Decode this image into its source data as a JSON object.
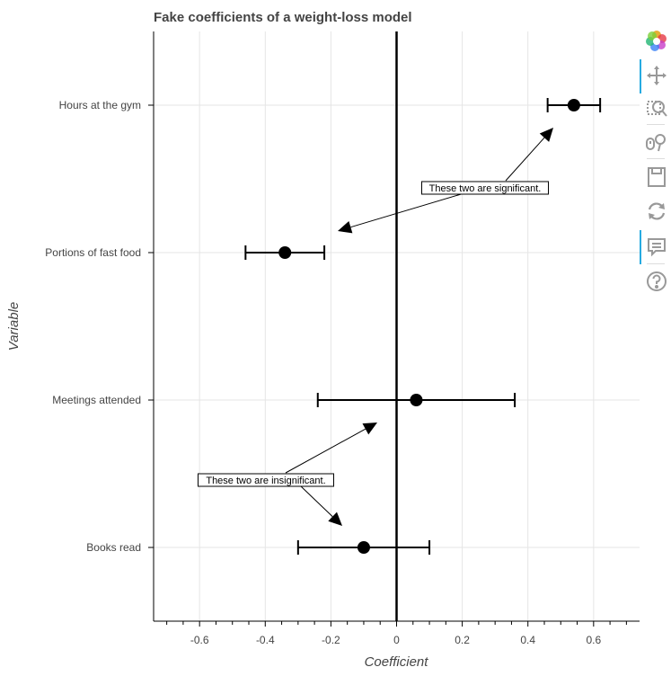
{
  "chart_data": {
    "type": "scatter",
    "title": "Fake coefficients of a weight-loss model",
    "xlabel": "Coefficient",
    "ylabel": "Variable",
    "xlim": [
      -0.74,
      0.74
    ],
    "x_ticks": [
      -0.6,
      -0.4,
      -0.2,
      0,
      0.2,
      0.4,
      0.6
    ],
    "x_tick_labels": [
      "-0.6",
      "-0.4",
      "-0.2",
      "0",
      "0.2",
      "0.4",
      "0.6"
    ],
    "categories": [
      "Hours at the gym",
      "Portions of fast food",
      "Meetings attended",
      "Books read"
    ],
    "points": [
      {
        "variable": "Hours at the gym",
        "coef": 0.54,
        "lower": 0.46,
        "upper": 0.62
      },
      {
        "variable": "Portions of fast food",
        "coef": -0.34,
        "lower": -0.46,
        "upper": -0.22
      },
      {
        "variable": "Meetings attended",
        "coef": 0.06,
        "lower": -0.24,
        "upper": 0.36
      },
      {
        "variable": "Books read",
        "coef": -0.1,
        "lower": -0.3,
        "upper": 0.1
      }
    ],
    "reference_line_x": 0,
    "grid": true,
    "annotations": [
      {
        "text": "These two are significant.",
        "targets": [
          "Hours at the gym",
          "Portions of fast food"
        ]
      },
      {
        "text": "These two are insignificant.",
        "targets": [
          "Meetings attended",
          "Books read"
        ]
      }
    ]
  },
  "toolbar": {
    "tools": [
      "bokeh-logo-icon",
      "pan-icon",
      "box-zoom-icon",
      "wheel-zoom-icon",
      "save-icon",
      "reset-icon",
      "hover-icon",
      "help-icon"
    ],
    "accent_color": "#26aae1"
  }
}
